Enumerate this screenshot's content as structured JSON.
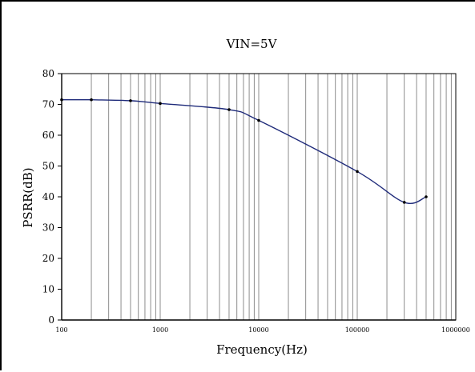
{
  "chart_data": {
    "type": "line",
    "title": "VIN=5V",
    "xlabel": "Frequency(Hz)",
    "ylabel": "PSRR(dB)",
    "x_scale": "log",
    "xlim": [
      100,
      1000000
    ],
    "ylim": [
      0,
      80
    ],
    "x_ticks": [
      "100",
      "1000",
      "10000",
      "100000",
      "1000000"
    ],
    "y_ticks": [
      "0",
      "10",
      "20",
      "30",
      "40",
      "50",
      "60",
      "70",
      "80"
    ],
    "grid": "vertical-log",
    "series": [
      {
        "color": "#1f2b7a",
        "points": [
          {
            "x": 100,
            "y": 71.5
          },
          {
            "x": 200,
            "y": 71.5
          },
          {
            "x": 500,
            "y": 71.2
          },
          {
            "x": 1000,
            "y": 70.3
          },
          {
            "x": 5000,
            "y": 68.3
          },
          {
            "x": 10000,
            "y": 64.8
          },
          {
            "x": 100000,
            "y": 48.2
          },
          {
            "x": 300000,
            "y": 38.2
          },
          {
            "x": 500000,
            "y": 40.0
          }
        ]
      }
    ]
  }
}
